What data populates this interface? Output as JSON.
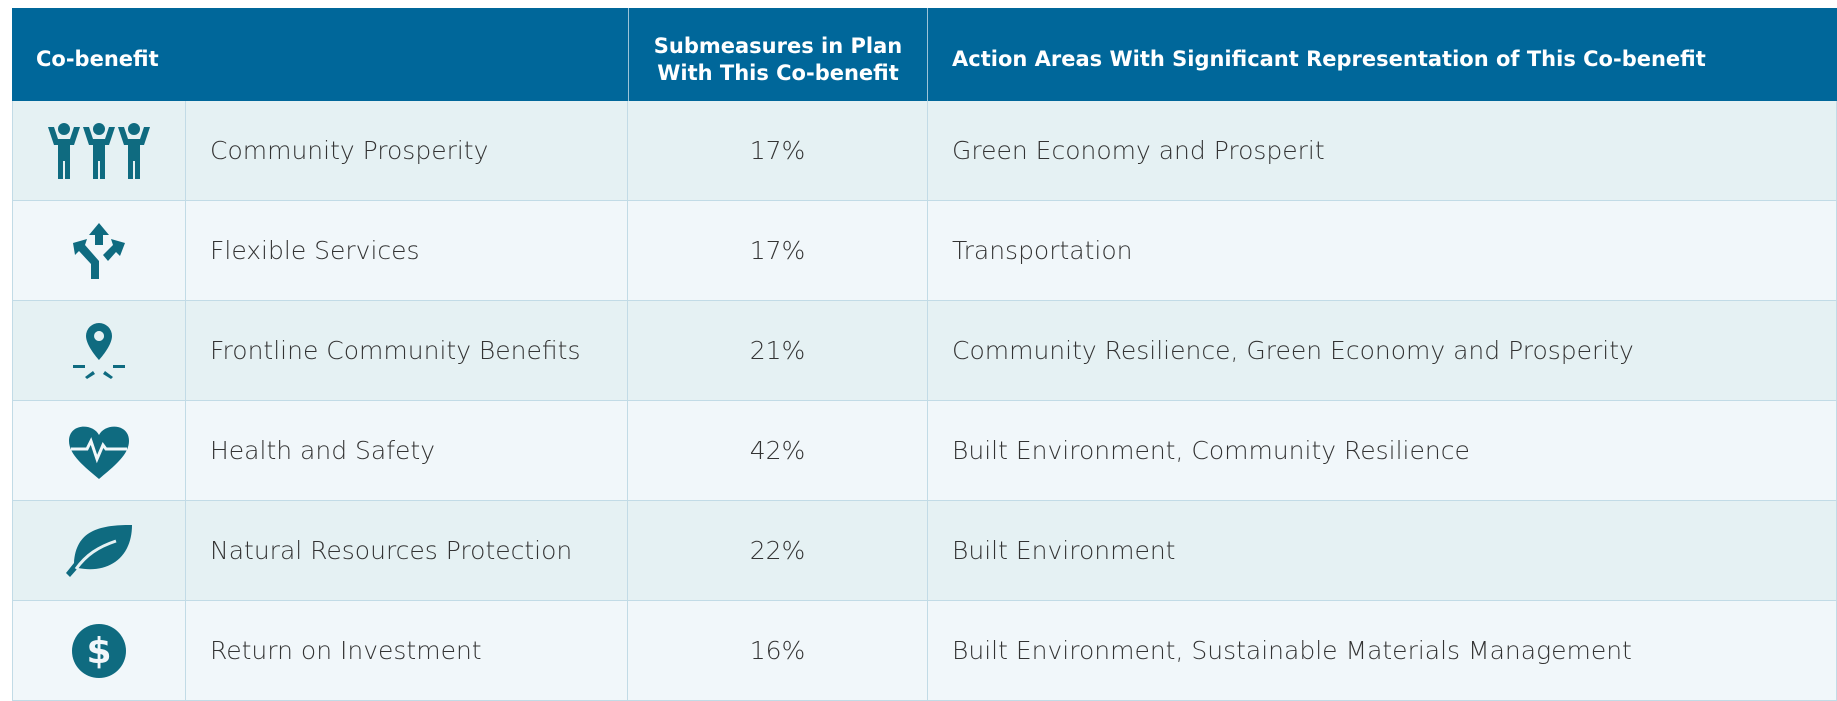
{
  "table": {
    "header": [
      "Co-benefit",
      "Submeasures in Plan With This Co-benefit",
      "Action Areas With Significant Representation of This Co-benefit"
    ],
    "rows": [
      [
        "Community Prosperity",
        "17%",
        "Green Economy and Prosperit"
      ],
      [
        "Flexible Services",
        "17%",
        "Transportation"
      ],
      [
        "Frontline Community Benefits",
        "21%",
        "Community Resilience, Green Economy and Prosperity"
      ],
      [
        "Health and Safety",
        "42%",
        "Built Environment, Community Resilience"
      ],
      [
        "Natural Resources Protection",
        "22%",
        "Built Environment"
      ],
      [
        "Return on Investment",
        "16%",
        "Built Environment, Sustainable Materials Management"
      ]
    ]
  }
}
